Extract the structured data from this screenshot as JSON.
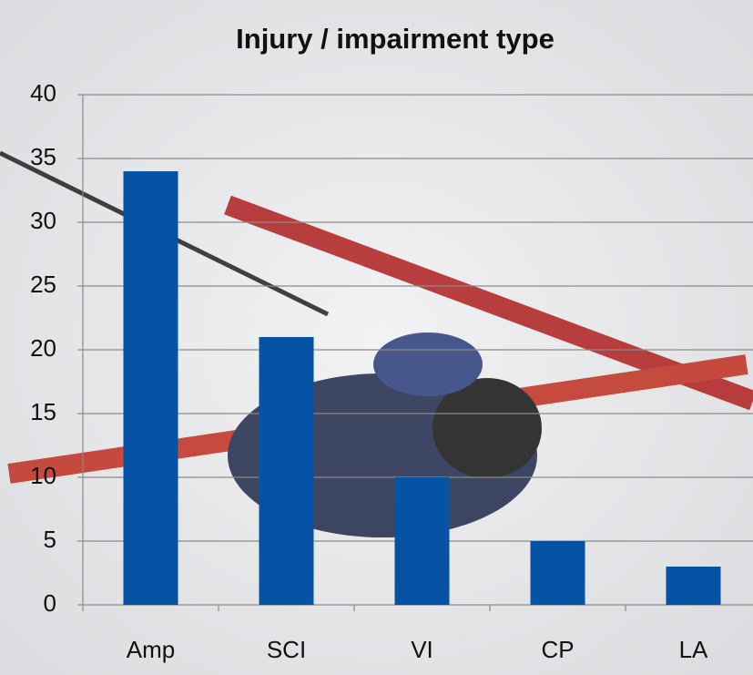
{
  "chart_data": {
    "type": "bar",
    "title": "Injury / impairment type",
    "categories": [
      "Amp",
      "SCI",
      "VI",
      "CP",
      "LA"
    ],
    "values": [
      34,
      21,
      10,
      5,
      3
    ],
    "color": "#0652a4",
    "ylim": [
      0,
      40
    ],
    "yticks": [
      0,
      5,
      10,
      15,
      20,
      25,
      30,
      35,
      40
    ],
    "grid": true
  }
}
